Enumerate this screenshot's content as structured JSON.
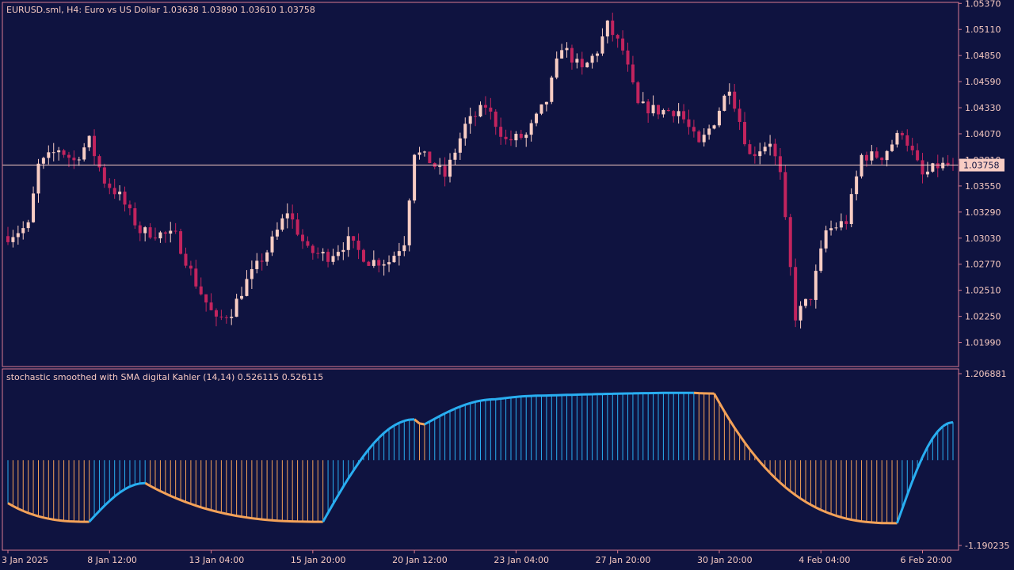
{
  "colors": {
    "background": "#0f1340",
    "frame": "#d87a8f",
    "bull": "#f8cdc4",
    "bear": "#c2245e",
    "text": "#f6c9c1",
    "price_line": "#f8cdc4",
    "stoch_up": "#29aef1",
    "stoch_down": "#f4a259"
  },
  "chart_data": [
    {
      "type": "candlestick",
      "title": "EURUSD.sml, H4:  Euro vs US Dollar  1.03638 1.03890 1.03610 1.03758",
      "symbol": "EURUSD.sml",
      "timeframe": "H4",
      "description": "Euro vs US Dollar",
      "ohlc_label": "1.03638 1.03890 1.03610 1.03758",
      "current_price": 1.03758,
      "current_price_label": "1.03758",
      "ylim": [
        1.0175,
        1.0538
      ],
      "y_ticks": [
        1.0537,
        1.0511,
        1.0485,
        1.0459,
        1.0433,
        1.0407,
        1.0381,
        1.0355,
        1.0329,
        1.0303,
        1.0277,
        1.0251,
        1.0225,
        1.0199
      ],
      "y_tick_labels": [
        "1.05370",
        "1.05110",
        "1.04850",
        "1.04590",
        "1.04330",
        "1.04070",
        "1.03810",
        "1.03550",
        "1.03290",
        "1.03030",
        "1.02770",
        "1.02510",
        "1.02250",
        "1.01990"
      ],
      "x_tick_labels": [
        "3 Jan 2025",
        "8 Jan 12:00",
        "13 Jan 04:00",
        "15 Jan 20:00",
        "20 Jan 12:00",
        "23 Jan 04:00",
        "27 Jan 20:00",
        "30 Jan 20:00",
        "4 Feb 04:00",
        "6 Feb 20:00"
      ],
      "x_tick_bar_index": [
        0,
        20,
        40,
        60,
        80,
        100,
        120,
        140,
        160,
        180
      ],
      "bar_count": 187,
      "waypoints": [
        {
          "i": 0,
          "p": 1.0305
        },
        {
          "i": 4,
          "p": 1.0315
        },
        {
          "i": 6,
          "p": 1.0375
        },
        {
          "i": 10,
          "p": 1.0392
        },
        {
          "i": 13,
          "p": 1.038
        },
        {
          "i": 16,
          "p": 1.04
        },
        {
          "i": 19,
          "p": 1.036
        },
        {
          "i": 22,
          "p": 1.0345
        },
        {
          "i": 26,
          "p": 1.031
        },
        {
          "i": 33,
          "p": 1.0305
        },
        {
          "i": 37,
          "p": 1.0258
        },
        {
          "i": 41,
          "p": 1.022
        },
        {
          "i": 44,
          "p": 1.023
        },
        {
          "i": 47,
          "p": 1.026
        },
        {
          "i": 51,
          "p": 1.029
        },
        {
          "i": 55,
          "p": 1.033
        },
        {
          "i": 59,
          "p": 1.029
        },
        {
          "i": 63,
          "p": 1.0285
        },
        {
          "i": 67,
          "p": 1.03
        },
        {
          "i": 71,
          "p": 1.028
        },
        {
          "i": 75,
          "p": 1.028
        },
        {
          "i": 78,
          "p": 1.03
        },
        {
          "i": 80,
          "p": 1.039
        },
        {
          "i": 83,
          "p": 1.038
        },
        {
          "i": 86,
          "p": 1.0365
        },
        {
          "i": 90,
          "p": 1.0415
        },
        {
          "i": 94,
          "p": 1.0435
        },
        {
          "i": 98,
          "p": 1.04
        },
        {
          "i": 102,
          "p": 1.0405
        },
        {
          "i": 106,
          "p": 1.044
        },
        {
          "i": 109,
          "p": 1.0495
        },
        {
          "i": 113,
          "p": 1.047
        },
        {
          "i": 116,
          "p": 1.049
        },
        {
          "i": 118,
          "p": 1.0515
        },
        {
          "i": 121,
          "p": 1.049
        },
        {
          "i": 124,
          "p": 1.0435
        },
        {
          "i": 128,
          "p": 1.043
        },
        {
          "i": 132,
          "p": 1.043
        },
        {
          "i": 136,
          "p": 1.0395
        },
        {
          "i": 139,
          "p": 1.042
        },
        {
          "i": 142,
          "p": 1.0455
        },
        {
          "i": 146,
          "p": 1.0385
        },
        {
          "i": 150,
          "p": 1.04
        },
        {
          "i": 152,
          "p": 1.0365
        },
        {
          "i": 155,
          "p": 1.0225
        },
        {
          "i": 158,
          "p": 1.0245
        },
        {
          "i": 161,
          "p": 1.031
        },
        {
          "i": 165,
          "p": 1.032
        },
        {
          "i": 168,
          "p": 1.0385
        },
        {
          "i": 172,
          "p": 1.0385
        },
        {
          "i": 176,
          "p": 1.041
        },
        {
          "i": 180,
          "p": 1.0365
        },
        {
          "i": 183,
          "p": 1.0375
        },
        {
          "i": 186,
          "p": 1.0376
        }
      ]
    },
    {
      "type": "line",
      "title": "stochastic smoothed with SMA digital Kahler (14,14) 0.526115 0.526115",
      "values_label": "0.526115 0.526115",
      "ylim": [
        -1.190235,
        1.206881
      ],
      "y_tick_labels": [
        "1.206881",
        "-1.190235"
      ],
      "level": 0,
      "series": [
        {
          "name": "stochastic smoothed",
          "x": [
            0,
            16,
            27,
            62,
            80,
            82,
            96,
            105,
            135,
            139,
            175,
            186
          ],
          "y": [
            -0.6,
            -0.86,
            -0.32,
            -0.86,
            0.57,
            0.5,
            0.85,
            0.9,
            0.94,
            0.93,
            -0.88,
            0.53
          ]
        }
      ]
    }
  ]
}
